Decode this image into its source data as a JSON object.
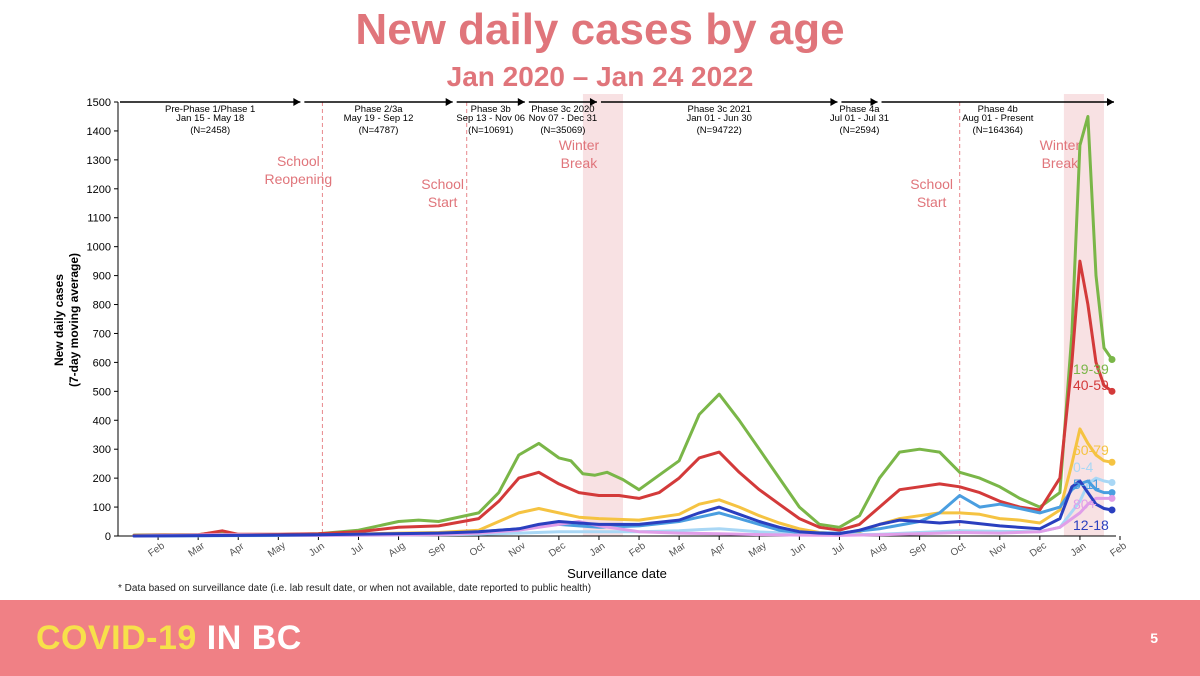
{
  "chart_data": {
    "type": "line",
    "title": "New daily cases by age",
    "subtitle": "Jan 2020 – Jan 24 2022",
    "xlabel": "Surveillance date",
    "ylabel_line1": "New daily cases",
    "ylabel_line2": "(7-day moving average)",
    "ylim": [
      0,
      1500
    ],
    "yticks": [
      0,
      100,
      200,
      300,
      400,
      500,
      600,
      700,
      800,
      900,
      1000,
      1100,
      1200,
      1300,
      1400,
      1500
    ],
    "xlim": [
      0,
      24.9
    ],
    "month_ticks": [
      "Feb",
      "Mar",
      "Apr",
      "May",
      "Jun",
      "Jul",
      "Aug",
      "Sep",
      "Oct",
      "Nov",
      "Dec",
      "Jan",
      "Feb",
      "Mar",
      "Apr",
      "May",
      "Jun",
      "Jul",
      "Aug",
      "Sep",
      "Oct",
      "Nov",
      "Dec",
      "Jan",
      "Feb"
    ],
    "month_positions": [
      1,
      2,
      3,
      4,
      5,
      6,
      7,
      8,
      9,
      10,
      11,
      12,
      13,
      14,
      15,
      16,
      17,
      18,
      19,
      20,
      21,
      22,
      23,
      24,
      25
    ],
    "phases": [
      {
        "label": "Pre-Phase 1/Phase 1",
        "dates": "Jan 15 - May 18",
        "n": "(N=2458)"
      },
      {
        "label": "Phase 2/3a",
        "dates": "May 19 - Sep 12",
        "n": "(N=4787)"
      },
      {
        "label": "Phase 3b",
        "dates": "Sep 13 - Nov 06",
        "n": "(N=10691)"
      },
      {
        "label": "Phase 3c 2020",
        "dates": "Nov 07 - Dec 31",
        "n": "(N=35069)"
      },
      {
        "label": "Phase 3c 2021",
        "dates": "Jan 01 - Jun 30",
        "n": "(N=94722)"
      },
      {
        "label": "Phase 4a",
        "dates": "Jul 01 - Jul 31",
        "n": "(N=2594)"
      },
      {
        "label": "Phase 4b",
        "dates": "Aug 01 - Present",
        "n": "(N=164364)"
      }
    ],
    "phase_starts": [
      0,
      4.6,
      8.4,
      10.2,
      12,
      18,
      19
    ],
    "annotations": [
      {
        "text": "School Reopening",
        "month": 4.5
      },
      {
        "text": "School Start",
        "month": 8.1
      },
      {
        "text": "Winter Break",
        "month": 11.5
      },
      {
        "text": "School Start",
        "month": 20.3
      },
      {
        "text": "Winter Break",
        "month": 23.5
      }
    ],
    "school_lines": [
      5.1,
      8.7,
      21.0
    ],
    "winter_breaks": [
      [
        11.6,
        12.6
      ],
      [
        23.6,
        24.6
      ]
    ],
    "series": [
      {
        "name": "19-39",
        "color": "#7ab648",
        "x": [
          0.4,
          2,
          2.6,
          3,
          4,
          5,
          6,
          7,
          7.5,
          8,
          9,
          9.5,
          10,
          10.5,
          11,
          11.3,
          11.6,
          11.9,
          12.2,
          12.6,
          13,
          13.5,
          14,
          14.5,
          15,
          15.5,
          16,
          16.5,
          17,
          17.5,
          18,
          18.5,
          19,
          19.5,
          20,
          20.5,
          21,
          21.5,
          22,
          22.5,
          23,
          23.5,
          23.8,
          24,
          24.2,
          24.4,
          24.6,
          24.8
        ],
        "values": [
          3,
          5,
          15,
          5,
          5,
          8,
          20,
          50,
          55,
          50,
          80,
          150,
          280,
          320,
          270,
          260,
          215,
          210,
          220,
          195,
          160,
          210,
          260,
          420,
          490,
          400,
          300,
          200,
          100,
          40,
          30,
          70,
          200,
          290,
          300,
          290,
          220,
          200,
          170,
          130,
          100,
          150,
          700,
          1350,
          1450,
          900,
          650,
          610
        ]
      },
      {
        "name": "40-59",
        "color": "#d33a3a",
        "x": [
          0.4,
          2,
          2.6,
          3,
          4,
          5,
          6,
          7,
          8,
          9,
          9.5,
          10,
          10.5,
          11,
          11.5,
          12,
          12.5,
          13,
          13.5,
          14,
          14.5,
          15,
          15.5,
          16,
          16.5,
          17,
          17.5,
          18,
          18.5,
          19,
          19.5,
          20,
          20.5,
          21,
          21.5,
          22,
          22.5,
          23,
          23.5,
          23.8,
          24,
          24.2,
          24.4,
          24.6,
          24.8
        ],
        "values": [
          2,
          4,
          18,
          6,
          6,
          8,
          15,
          30,
          35,
          60,
          120,
          200,
          220,
          180,
          150,
          140,
          140,
          130,
          150,
          200,
          270,
          290,
          220,
          160,
          110,
          60,
          30,
          20,
          40,
          100,
          160,
          170,
          180,
          170,
          150,
          120,
          100,
          90,
          200,
          600,
          950,
          800,
          600,
          520,
          500
        ]
      },
      {
        "name": "60-79",
        "color": "#f5c342",
        "x": [
          0.4,
          3,
          5,
          7,
          8,
          9,
          9.5,
          10,
          10.5,
          11,
          11.5,
          12,
          13,
          14,
          14.5,
          15,
          15.5,
          16,
          16.5,
          17,
          17.5,
          18,
          18.5,
          19,
          19.5,
          20,
          20.5,
          21,
          21.5,
          22,
          22.5,
          23,
          23.5,
          23.8,
          24,
          24.2,
          24.4,
          24.6,
          24.8
        ],
        "values": [
          1,
          4,
          3,
          10,
          12,
          20,
          50,
          80,
          95,
          80,
          65,
          60,
          55,
          75,
          110,
          125,
          100,
          70,
          45,
          25,
          12,
          8,
          15,
          40,
          60,
          70,
          80,
          80,
          75,
          60,
          55,
          45,
          90,
          250,
          370,
          320,
          280,
          260,
          255
        ]
      },
      {
        "name": "0-4",
        "color": "#a9d7f5",
        "x": [
          0.4,
          5,
          8,
          9,
          10,
          11,
          12,
          13,
          14,
          14.5,
          15,
          15.5,
          16,
          17,
          18,
          19,
          20,
          21,
          22,
          23,
          23.5,
          24,
          24.2,
          24.4,
          24.6,
          24.8
        ],
        "values": [
          0,
          2,
          4,
          6,
          10,
          15,
          15,
          15,
          18,
          22,
          25,
          20,
          14,
          8,
          4,
          6,
          12,
          18,
          16,
          15,
          30,
          120,
          180,
          200,
          190,
          185
        ]
      },
      {
        "name": "5-11",
        "color": "#4a9ee0",
        "x": [
          0.4,
          5,
          8,
          9,
          10,
          10.5,
          11,
          11.5,
          12,
          13,
          14,
          14.5,
          15,
          15.5,
          16,
          16.5,
          17,
          18,
          19,
          20,
          20.5,
          21,
          21.5,
          22,
          22.5,
          23,
          23.5,
          23.8,
          24,
          24.2,
          24.4,
          24.6,
          24.8
        ],
        "values": [
          0,
          3,
          8,
          15,
          25,
          35,
          40,
          35,
          30,
          35,
          50,
          65,
          80,
          60,
          40,
          20,
          12,
          10,
          25,
          50,
          80,
          140,
          100,
          110,
          95,
          80,
          100,
          160,
          180,
          190,
          160,
          150,
          150
        ]
      },
      {
        "name": "80+",
        "color": "#e09ee8",
        "x": [
          0.4,
          2.5,
          3,
          5,
          8,
          9,
          10,
          11,
          11.5,
          12,
          13,
          14,
          15,
          16,
          17,
          18,
          19,
          20,
          21,
          22,
          23,
          23.5,
          24,
          24.2,
          24.4,
          24.6,
          24.8
        ],
        "values": [
          0,
          5,
          4,
          2,
          5,
          10,
          20,
          40,
          50,
          35,
          15,
          10,
          8,
          5,
          3,
          2,
          4,
          8,
          12,
          10,
          15,
          30,
          80,
          110,
          130,
          130,
          130
        ]
      },
      {
        "name": "12-18",
        "color": "#2a3fbf",
        "x": [
          0.4,
          5,
          8,
          9,
          10,
          10.5,
          11,
          11.5,
          12,
          13,
          14,
          14.5,
          15,
          15.5,
          16,
          16.5,
          17,
          17.5,
          18,
          18.5,
          19,
          19.5,
          20,
          20.5,
          21,
          22,
          23,
          23.5,
          23.8,
          24,
          24.2,
          24.4,
          24.6,
          24.8
        ],
        "values": [
          0,
          4,
          10,
          15,
          25,
          40,
          50,
          45,
          40,
          40,
          55,
          80,
          100,
          75,
          50,
          30,
          15,
          10,
          8,
          20,
          40,
          55,
          50,
          45,
          50,
          35,
          25,
          60,
          170,
          190,
          150,
          110,
          95,
          90
        ]
      }
    ]
  },
  "footnote": "* Data based on surveillance date (i.e. lab result date, or when not available, date reported to public health)",
  "banner": {
    "brand_part1": "COVID-19",
    "brand_part2": "IN BC",
    "page_number": "5"
  },
  "colors": {
    "title": "#e0757b",
    "banner": "#f08085",
    "brand_yellow": "#f7e04a",
    "annotation": "#e0757b"
  }
}
